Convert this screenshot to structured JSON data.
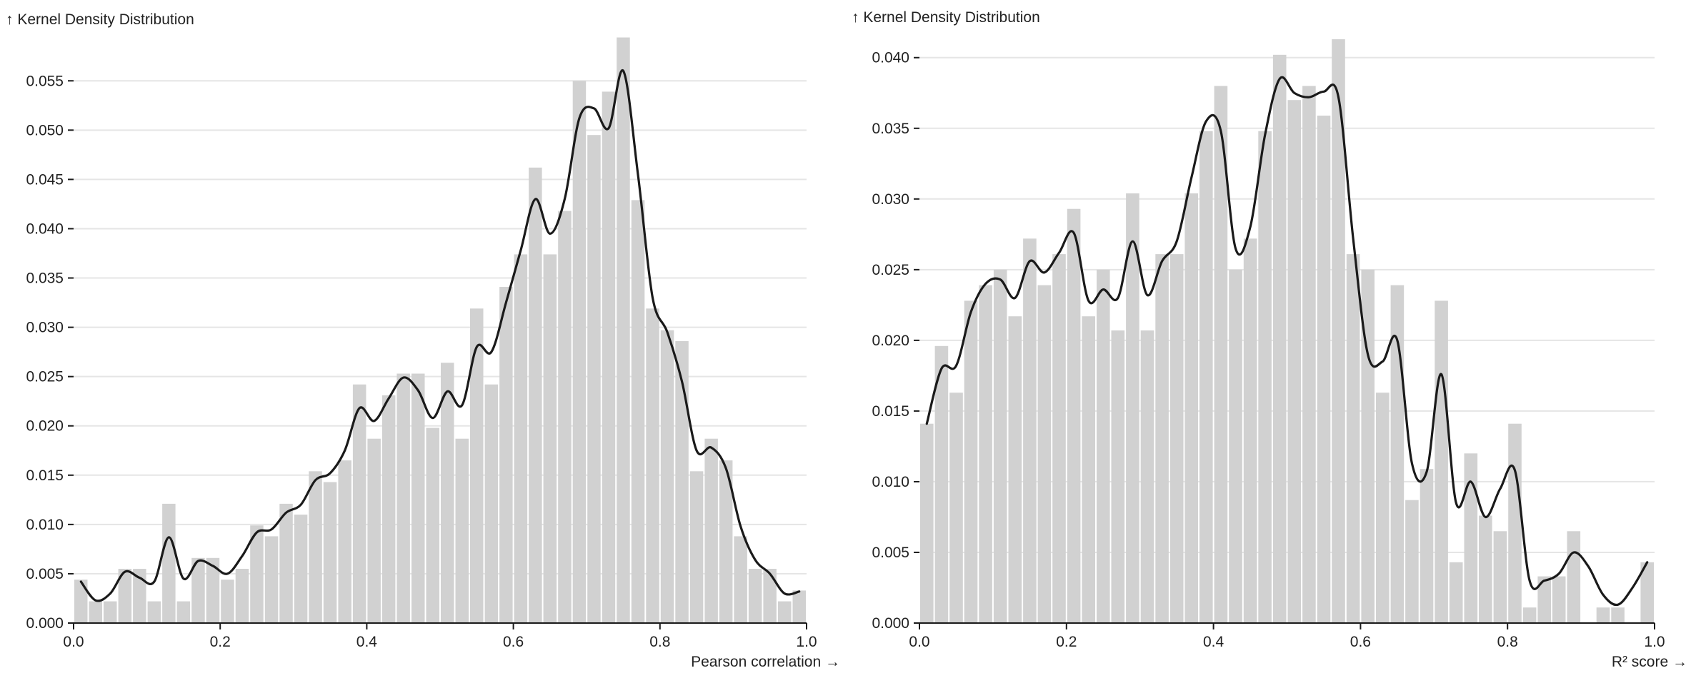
{
  "chart_data": [
    {
      "type": "bar",
      "ylabel": "↑ Kernel Density Distribution",
      "xlabel": "Pearson correlation →",
      "xlim": [
        0,
        1
      ],
      "ylim": [
        0,
        0.059
      ],
      "grid": true,
      "yticks": [
        "0.000",
        "0.005",
        "0.010",
        "0.015",
        "0.020",
        "0.025",
        "0.030",
        "0.035",
        "0.040",
        "0.045",
        "0.050",
        "0.055"
      ],
      "xticks": [
        "0.0",
        "0.2",
        "0.4",
        "0.6",
        "0.8",
        "1.0"
      ],
      "histogram": {
        "bin_width": 0.02,
        "bin_starts": [
          0.0,
          0.02,
          0.04,
          0.06,
          0.08,
          0.1,
          0.12,
          0.14,
          0.16,
          0.18,
          0.2,
          0.22,
          0.24,
          0.26,
          0.28,
          0.3,
          0.32,
          0.34,
          0.36,
          0.38,
          0.4,
          0.42,
          0.44,
          0.46,
          0.48,
          0.5,
          0.52,
          0.54,
          0.56,
          0.58,
          0.6,
          0.62,
          0.64,
          0.66,
          0.68,
          0.7,
          0.72,
          0.74,
          0.76,
          0.78,
          0.8,
          0.82,
          0.84,
          0.86,
          0.88,
          0.9,
          0.92,
          0.94,
          0.96,
          0.98
        ],
        "values": [
          0.0044,
          0.0022,
          0.0022,
          0.0055,
          0.0055,
          0.0022,
          0.0121,
          0.0022,
          0.0066,
          0.0066,
          0.0044,
          0.0055,
          0.0099,
          0.0088,
          0.0121,
          0.011,
          0.0154,
          0.0143,
          0.0165,
          0.0242,
          0.0187,
          0.0231,
          0.0253,
          0.0253,
          0.0198,
          0.0264,
          0.0187,
          0.0319,
          0.0242,
          0.0341,
          0.0374,
          0.0462,
          0.0374,
          0.0418,
          0.055,
          0.0495,
          0.0539,
          0.0594,
          0.0429,
          0.0319,
          0.0297,
          0.0286,
          0.0154,
          0.0187,
          0.0165,
          0.0088,
          0.0055,
          0.0055,
          0.0022,
          0.0033
        ]
      },
      "kde": {
        "x": [
          0.01,
          0.03,
          0.05,
          0.07,
          0.09,
          0.11,
          0.13,
          0.15,
          0.17,
          0.19,
          0.21,
          0.23,
          0.25,
          0.27,
          0.29,
          0.31,
          0.33,
          0.35,
          0.37,
          0.39,
          0.41,
          0.43,
          0.45,
          0.47,
          0.49,
          0.51,
          0.53,
          0.55,
          0.57,
          0.59,
          0.61,
          0.63,
          0.65,
          0.67,
          0.69,
          0.71,
          0.73,
          0.75,
          0.77,
          0.79,
          0.81,
          0.83,
          0.85,
          0.87,
          0.89,
          0.91,
          0.93,
          0.95,
          0.97,
          0.99
        ],
        "y": [
          0.0042,
          0.0023,
          0.003,
          0.0052,
          0.0046,
          0.0042,
          0.0087,
          0.0045,
          0.0063,
          0.0058,
          0.005,
          0.0068,
          0.0092,
          0.0095,
          0.0112,
          0.012,
          0.0145,
          0.0152,
          0.0175,
          0.0218,
          0.0205,
          0.0228,
          0.0249,
          0.0236,
          0.0208,
          0.0235,
          0.0221,
          0.028,
          0.0275,
          0.0325,
          0.0378,
          0.043,
          0.0395,
          0.043,
          0.0512,
          0.0522,
          0.0502,
          0.056,
          0.0455,
          0.033,
          0.0295,
          0.0245,
          0.0175,
          0.0178,
          0.0157,
          0.0098,
          0.0064,
          0.005,
          0.003,
          0.0032
        ]
      },
      "colors": {
        "bar": "#d1d1d1",
        "line": "#1a1a1a",
        "grid": "#e5e5e5",
        "axis": "#1a1a1a"
      }
    },
    {
      "type": "bar",
      "ylabel": "↑ Kernel Density Distribution",
      "xlabel": "R² score →",
      "xlim": [
        0,
        1
      ],
      "ylim": [
        0,
        0.0413
      ],
      "grid": true,
      "yticks": [
        "0.000",
        "0.005",
        "0.010",
        "0.015",
        "0.020",
        "0.025",
        "0.030",
        "0.035",
        "0.040"
      ],
      "xticks": [
        "0.0",
        "0.2",
        "0.4",
        "0.6",
        "0.8",
        "1.0"
      ],
      "histogram": {
        "bin_width": 0.02,
        "bin_starts": [
          0.0,
          0.02,
          0.04,
          0.06,
          0.08,
          0.1,
          0.12,
          0.14,
          0.16,
          0.18,
          0.2,
          0.22,
          0.24,
          0.26,
          0.28,
          0.3,
          0.32,
          0.34,
          0.36,
          0.38,
          0.4,
          0.42,
          0.44,
          0.46,
          0.48,
          0.5,
          0.52,
          0.54,
          0.56,
          0.58,
          0.6,
          0.62,
          0.64,
          0.66,
          0.68,
          0.7,
          0.72,
          0.74,
          0.76,
          0.78,
          0.8,
          0.82,
          0.84,
          0.86,
          0.88,
          0.9,
          0.92,
          0.94,
          0.96,
          0.98
        ],
        "values": [
          0.0141,
          0.0196,
          0.0163,
          0.0228,
          0.0239,
          0.025,
          0.0217,
          0.0272,
          0.0239,
          0.0261,
          0.0293,
          0.0217,
          0.025,
          0.0207,
          0.0304,
          0.0207,
          0.0261,
          0.0261,
          0.0304,
          0.0348,
          0.038,
          0.025,
          0.0272,
          0.0348,
          0.0402,
          0.037,
          0.038,
          0.0359,
          0.0413,
          0.0261,
          0.025,
          0.0163,
          0.0239,
          0.0087,
          0.0109,
          0.0228,
          0.0043,
          0.012,
          0.0076,
          0.0065,
          0.0141,
          0.0011,
          0.0033,
          0.0033,
          0.0065,
          0.0,
          0.0011,
          0.0011,
          0.0,
          0.0043
        ]
      },
      "kde": {
        "x": [
          0.01,
          0.03,
          0.05,
          0.07,
          0.09,
          0.11,
          0.13,
          0.15,
          0.17,
          0.19,
          0.21,
          0.23,
          0.25,
          0.27,
          0.29,
          0.31,
          0.33,
          0.35,
          0.37,
          0.39,
          0.41,
          0.43,
          0.45,
          0.47,
          0.49,
          0.51,
          0.53,
          0.55,
          0.57,
          0.59,
          0.61,
          0.63,
          0.65,
          0.67,
          0.69,
          0.71,
          0.73,
          0.75,
          0.77,
          0.79,
          0.81,
          0.83,
          0.85,
          0.87,
          0.89,
          0.91,
          0.93,
          0.95,
          0.97,
          0.99
        ],
        "y": [
          0.0141,
          0.018,
          0.0182,
          0.022,
          0.024,
          0.0243,
          0.023,
          0.0256,
          0.0248,
          0.0262,
          0.0276,
          0.0228,
          0.0236,
          0.023,
          0.027,
          0.0232,
          0.0256,
          0.027,
          0.0315,
          0.0355,
          0.0348,
          0.0265,
          0.028,
          0.0345,
          0.0385,
          0.0375,
          0.0372,
          0.0376,
          0.0372,
          0.0272,
          0.019,
          0.0185,
          0.02,
          0.0113,
          0.0107,
          0.0176,
          0.0085,
          0.01,
          0.0075,
          0.0095,
          0.0108,
          0.003,
          0.003,
          0.0035,
          0.005,
          0.004,
          0.002,
          0.0013,
          0.0025,
          0.0043
        ]
      },
      "colors": {
        "bar": "#d1d1d1",
        "line": "#1a1a1a",
        "grid": "#e5e5e5",
        "axis": "#1a1a1a"
      }
    }
  ]
}
